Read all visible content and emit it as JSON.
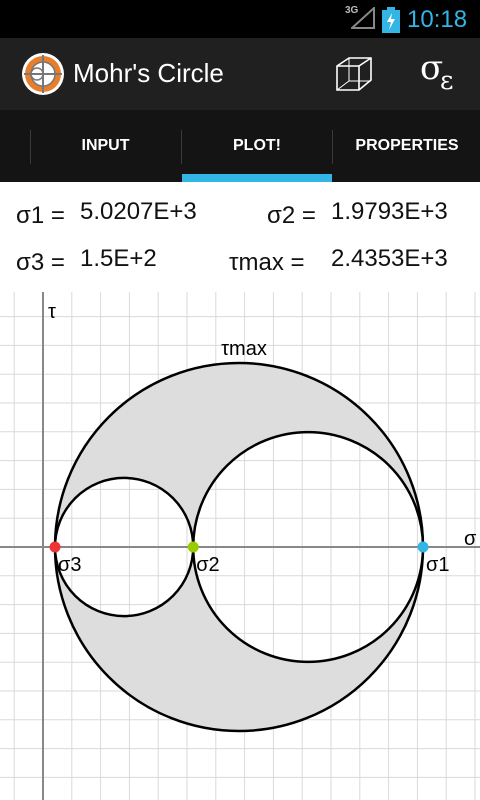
{
  "status_bar": {
    "network": "3G",
    "time": "10:18",
    "accent_color": "#33b5e5"
  },
  "action_bar": {
    "title": "Mohr's Circle",
    "actions": {
      "cube_icon": "cube-icon",
      "sigma_epsilon_label": "σ",
      "sigma_epsilon_sub": "ε"
    }
  },
  "tabs": [
    {
      "label": "INPUT",
      "selected": false
    },
    {
      "label": "PLOT!",
      "selected": true
    },
    {
      "label": "PROPERTIES",
      "selected": false
    }
  ],
  "results": {
    "sigma1": {
      "label": "σ1 =",
      "value": "5.0207E+3"
    },
    "sigma2": {
      "label": "σ2 =",
      "value": "1.9793E+3"
    },
    "sigma3": {
      "label": "σ3 =",
      "value": "1.5E+2"
    },
    "tau_max": {
      "label": "τmax =",
      "value": "2.4353E+3"
    }
  },
  "chart_data": {
    "type": "scatter",
    "xlabel": "σ",
    "ylabel": "τ",
    "stresses": {
      "sigma1": 5020.7,
      "sigma2": 1979.3,
      "sigma3": 150,
      "tau_max": 2435.3
    },
    "points": [
      {
        "label": "σ3",
        "x": 150,
        "y": 0,
        "color": "#ee3333"
      },
      {
        "label": "σ2",
        "x": 1979.3,
        "y": 0,
        "color": "#99cc00"
      },
      {
        "label": "σ1",
        "x": 5020.7,
        "y": 0,
        "color": "#33b5e5"
      }
    ],
    "circles": [
      {
        "between": [
          "σ3",
          "σ1"
        ]
      },
      {
        "between": [
          "σ3",
          "σ2"
        ]
      },
      {
        "between": [
          "σ2",
          "σ1"
        ]
      }
    ],
    "annotation": "τmax",
    "grid": true,
    "fill_color": "#dddddd"
  }
}
